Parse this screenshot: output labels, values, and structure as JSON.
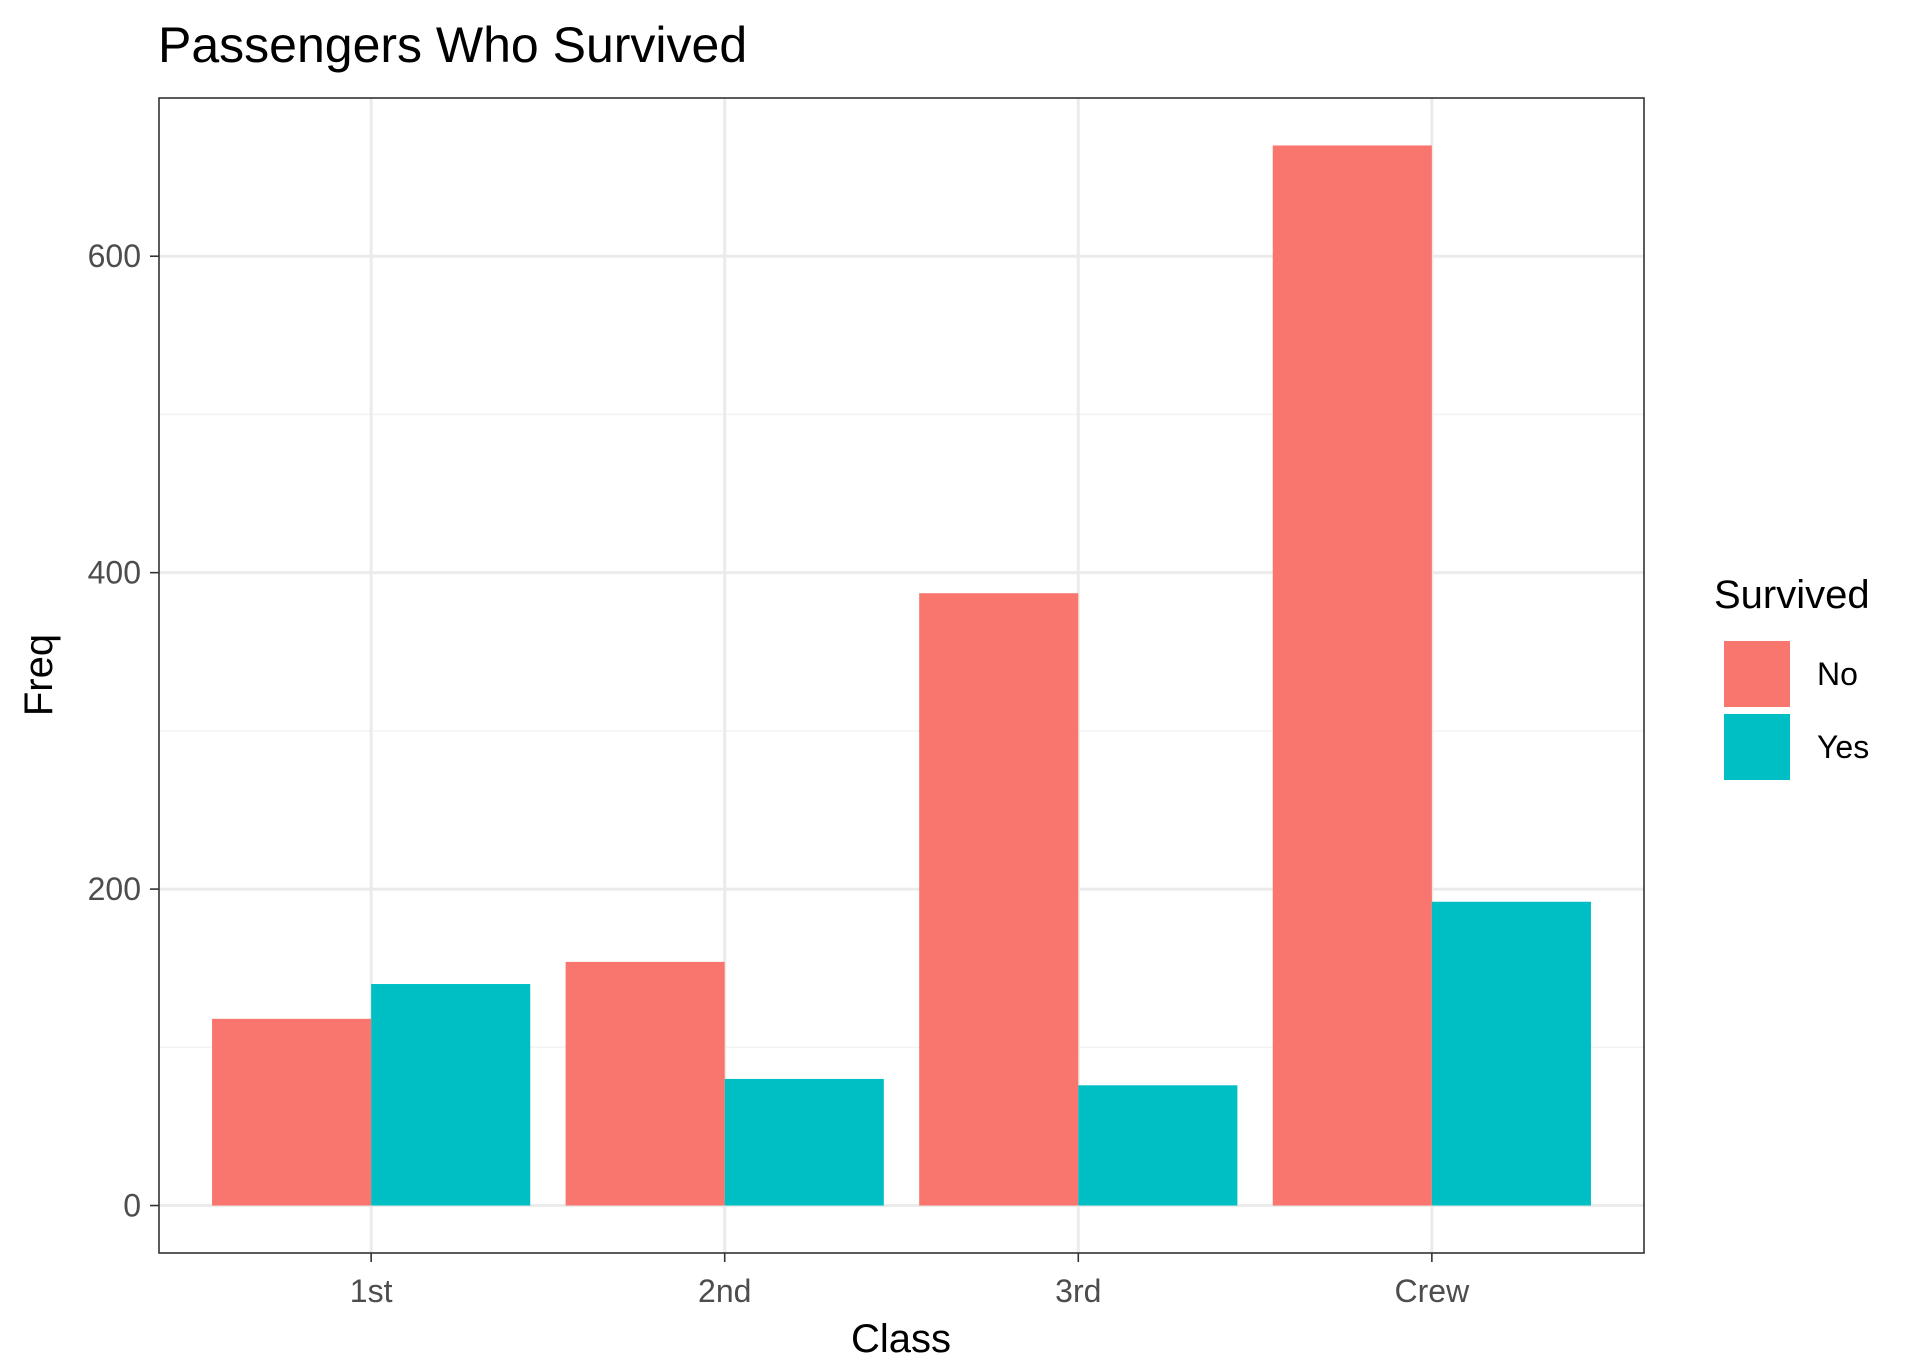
{
  "chart_data": {
    "type": "bar",
    "title": "Passengers Who Survived",
    "xlabel": "Class",
    "ylabel": "Freq",
    "categories": [
      "1st",
      "2nd",
      "3rd",
      "Crew"
    ],
    "series": [
      {
        "name": "No",
        "values": [
          118,
          154,
          387,
          670
        ],
        "color": "#F8766D"
      },
      {
        "name": "Yes",
        "values": [
          140,
          80,
          76,
          192
        ],
        "color": "#00BFC4"
      }
    ],
    "ylim": [
      -30,
      700
    ],
    "y_ticks": [
      0,
      200,
      400,
      600
    ],
    "grid": true,
    "legend": {
      "title": "Survived",
      "position": "right"
    }
  }
}
